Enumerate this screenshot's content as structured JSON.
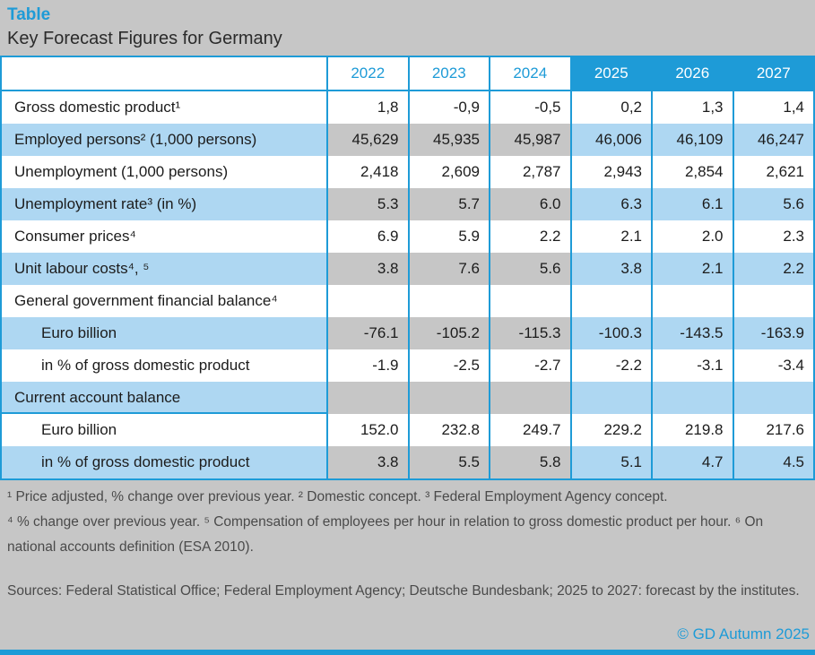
{
  "page": {
    "kicker": "Table",
    "title": "Key Forecast Figures for Germany",
    "copyright": "© GD Autumn 2025"
  },
  "colors": {
    "accent_blue": "#1e9bd7",
    "light_blue": "#aed7f2",
    "gray_cell": "#c6c6c6",
    "page_background": "#c6c6c6"
  },
  "chart_data": {
    "type": "table",
    "title": "Key Forecast Figures for Germany",
    "columns": [
      "2022",
      "2023",
      "2024",
      "2025",
      "2026",
      "2027"
    ],
    "historical_columns": [
      "2022",
      "2023",
      "2024"
    ],
    "forecast_columns": [
      "2025",
      "2026",
      "2027"
    ],
    "rows": [
      {
        "label": "Gross domestic product¹",
        "indent": false,
        "shaded": false,
        "divider_below": false,
        "values": [
          "1,8",
          "-0,9",
          "-0,5",
          "0,2",
          "1,3",
          "1,4"
        ]
      },
      {
        "label": "Employed persons² (1,000 persons)",
        "indent": false,
        "shaded": true,
        "divider_below": false,
        "values": [
          "45,629",
          "45,935",
          "45,987",
          "46,006",
          "46,109",
          "46,247"
        ]
      },
      {
        "label": "Unemployment (1,000 persons)",
        "indent": false,
        "shaded": false,
        "divider_below": false,
        "values": [
          "2,418",
          "2,609",
          "2,787",
          "2,943",
          "2,854",
          "2,621"
        ]
      },
      {
        "label": "Unemployment rate³ (in %)",
        "indent": false,
        "shaded": true,
        "divider_below": false,
        "values": [
          "5.3",
          "5.7",
          "6.0",
          "6.3",
          "6.1",
          "5.6"
        ]
      },
      {
        "label": "Consumer prices⁴",
        "indent": false,
        "shaded": false,
        "divider_below": false,
        "values": [
          "6.9",
          "5.9",
          "2.2",
          "2.1",
          "2.0",
          "2.3"
        ]
      },
      {
        "label": "Unit labour costs⁴, ⁵",
        "indent": false,
        "shaded": true,
        "divider_below": false,
        "values": [
          "3.8",
          "7.6",
          "5.6",
          "3.8",
          "2.1",
          "2.2"
        ]
      },
      {
        "label": "General government financial balance⁴",
        "indent": false,
        "shaded": false,
        "divider_below": false,
        "values": [
          "",
          "",
          "",
          "",
          "",
          ""
        ]
      },
      {
        "label": "Euro billion",
        "indent": true,
        "shaded": true,
        "divider_below": false,
        "values": [
          "-76.1",
          "-105.2",
          "-115.3",
          "-100.3",
          "-143.5",
          "-163.9"
        ]
      },
      {
        "label": "in % of gross domestic product",
        "indent": true,
        "shaded": false,
        "divider_below": false,
        "values": [
          "-1.9",
          "-2.5",
          "-2.7",
          "-2.2",
          "-3.1",
          "-3.4"
        ]
      },
      {
        "label": "Current account balance",
        "indent": false,
        "shaded": true,
        "divider_below": true,
        "values": [
          "",
          "",
          "",
          "",
          "",
          ""
        ]
      },
      {
        "label": "Euro billion",
        "indent": true,
        "shaded": false,
        "divider_below": false,
        "values": [
          "152.0",
          "232.8",
          "249.7",
          "229.2",
          "219.8",
          "217.6"
        ]
      },
      {
        "label": "in % of gross domestic product",
        "indent": true,
        "shaded": true,
        "divider_below": false,
        "values": [
          "3.8",
          "5.5",
          "5.8",
          "5.1",
          "4.7",
          "4.5"
        ]
      }
    ]
  },
  "footnotes": [
    "¹ Price adjusted, % change over previous year. ² Domestic concept. ³ Federal Employment Agency concept.",
    "⁴ % change over previous year. ⁵ Compensation of employees per hour in relation to gross domestic product per hour. ⁶ On national accounts definition (ESA 2010)."
  ],
  "sources": "Sources: Federal Statistical Office; Federal Employment Agency; Deutsche Bundesbank; 2025 to 2027: forecast by the institutes."
}
